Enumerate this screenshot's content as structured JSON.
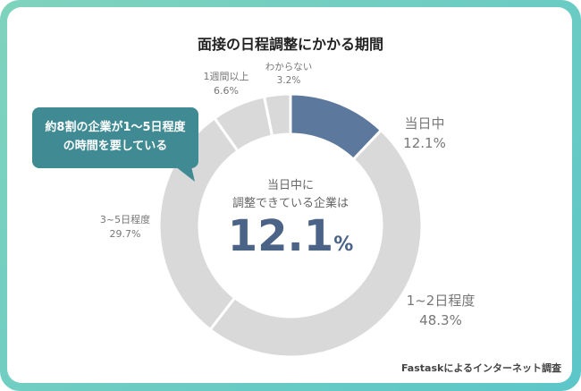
{
  "chart_data": {
    "type": "pie",
    "title": "面接の日程調整にかかる期間",
    "categories": [
      "当日中",
      "1~2日程度",
      "3~5日程度",
      "1週間以上",
      "わからない"
    ],
    "values": [
      12.1,
      48.3,
      29.7,
      6.6,
      3.2
    ],
    "value_labels": [
      "12.1%",
      "48.3%",
      "29.7%",
      "6.6%",
      "3.2%"
    ],
    "colors": [
      "#5c789c",
      "#d9d9d9",
      "#d9d9d9",
      "#d9d9d9",
      "#d9d9d9"
    ],
    "donut": true,
    "center_text": {
      "line1": "当日中に",
      "line2": "調整できている企業は",
      "value": "12.1",
      "unit": "%"
    },
    "annotation": {
      "line1": "約8割の企業が1～5日程度",
      "line2": "の時間を要している"
    },
    "source": "Fastaskによるインターネット調査"
  }
}
